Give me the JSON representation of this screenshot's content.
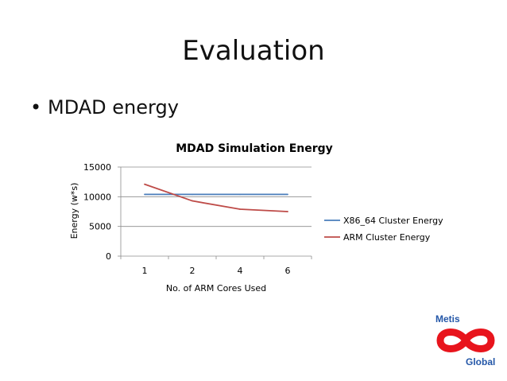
{
  "slide": {
    "title": "Evaluation",
    "bullet": "MDAD energy",
    "bullet_symbol": "•"
  },
  "logo": {
    "top_text": "Metis",
    "bottom_text": "Global",
    "text_color": "#2457a8",
    "mark_color": "#e8141c"
  },
  "chart_data": {
    "type": "line",
    "title": "MDAD Simulation Energy",
    "xlabel": "No. of ARM Cores Used",
    "ylabel": "Energy (w*s)",
    "categories": [
      "1",
      "2",
      "4",
      "6"
    ],
    "ylim": [
      0,
      15000
    ],
    "yticks": [
      0,
      5000,
      10000,
      15000
    ],
    "grid": true,
    "legend_position": "right",
    "series": [
      {
        "name": "X86_64 Cluster Energy",
        "color": "#4a7ebb",
        "values": [
          10400,
          10400,
          10400,
          10400
        ]
      },
      {
        "name": "ARM Cluster Energy",
        "color": "#be4b48",
        "values": [
          12100,
          9300,
          7900,
          7500
        ]
      }
    ]
  }
}
